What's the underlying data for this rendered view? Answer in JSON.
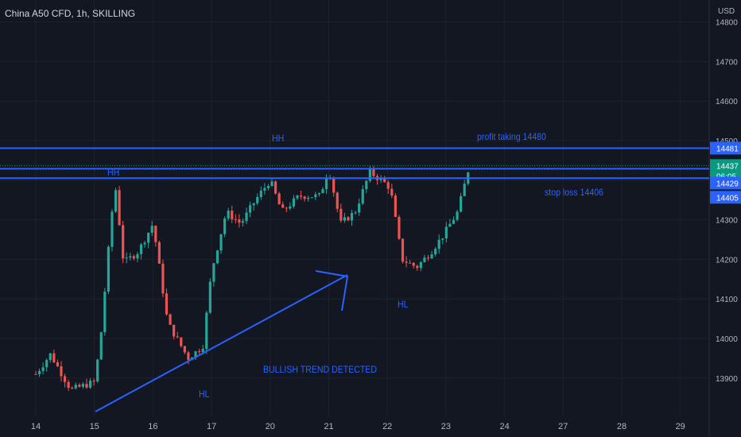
{
  "header": {
    "title": "China A50 CFD, 1h, SKILLING",
    "currency": "USD"
  },
  "annotations": {
    "hh_top": "HH",
    "hh_left": "HH",
    "hl_left": "HL",
    "hl_right": "HL",
    "profit_taking": "profit taking 14480",
    "stop_loss": "stop loss 14406",
    "bullish": "BULLISH TREND DETECTED"
  },
  "price_badges": {
    "profit_line": "14481",
    "current_price": "14437",
    "countdown": "06:05",
    "line_upper": "14429",
    "stop_line": "14405"
  },
  "colors": {
    "background": "#131722",
    "up": "#26a69a",
    "down": "#ef5350",
    "drawing": "#2962ff",
    "grid": "#1e222d",
    "axis_text": "#b2b5be",
    "price_badge": "#089981"
  },
  "chart_data": {
    "type": "candlestick",
    "title": "China A50 CFD, 1h, SKILLING",
    "currency": "USD",
    "x_ticks": [
      {
        "label": "14",
        "day": 14
      },
      {
        "label": "15",
        "day": 15
      },
      {
        "label": "16",
        "day": 16
      },
      {
        "label": "17",
        "day": 17
      },
      {
        "label": "20",
        "day": 18
      },
      {
        "label": "21",
        "day": 19
      },
      {
        "label": "22",
        "day": 20
      },
      {
        "label": "23",
        "day": 21
      },
      {
        "label": "24",
        "day": 22
      },
      {
        "label": "27",
        "day": 23
      },
      {
        "label": "28",
        "day": 24
      },
      {
        "label": "29",
        "day": 25
      }
    ],
    "y_ticks": [
      13900,
      14000,
      14100,
      14200,
      14300,
      14400,
      14500,
      14600,
      14700,
      14800
    ],
    "ylim": [
      13845,
      14835
    ],
    "horizontal_lines": [
      {
        "label": "profit taking 14480",
        "price": 14481
      },
      {
        "label": "",
        "price": 14429
      },
      {
        "label": "stop loss 14406",
        "price": 14405
      }
    ],
    "current_price": 14437,
    "keypoints": [
      {
        "day": 14.0,
        "price": 13910
      },
      {
        "day": 14.25,
        "price": 13960
      },
      {
        "day": 14.6,
        "price": 13870
      },
      {
        "day": 15.0,
        "price": 13890
      },
      {
        "day": 15.1,
        "price": 13990
      },
      {
        "day": 15.25,
        "price": 14240
      },
      {
        "day": 15.35,
        "price": 14395
      },
      {
        "day": 15.5,
        "price": 14190
      },
      {
        "day": 15.75,
        "price": 14220
      },
      {
        "day": 16.0,
        "price": 14290
      },
      {
        "day": 16.25,
        "price": 14040
      },
      {
        "day": 16.6,
        "price": 13950
      },
      {
        "day": 16.85,
        "price": 13980
      },
      {
        "day": 17.0,
        "price": 14170
      },
      {
        "day": 17.25,
        "price": 14320
      },
      {
        "day": 17.5,
        "price": 14290
      },
      {
        "day": 17.75,
        "price": 14350
      },
      {
        "day": 18.0,
        "price": 14400
      },
      {
        "day": 18.2,
        "price": 14320
      },
      {
        "day": 18.5,
        "price": 14360
      },
      {
        "day": 18.85,
        "price": 14360
      },
      {
        "day": 19.0,
        "price": 14430
      },
      {
        "day": 19.2,
        "price": 14290
      },
      {
        "day": 19.45,
        "price": 14320
      },
      {
        "day": 19.7,
        "price": 14420
      },
      {
        "day": 19.9,
        "price": 14400
      },
      {
        "day": 20.05,
        "price": 14380
      },
      {
        "day": 20.25,
        "price": 14200
      },
      {
        "day": 20.5,
        "price": 14180
      },
      {
        "day": 20.75,
        "price": 14220
      },
      {
        "day": 20.95,
        "price": 14260
      },
      {
        "day": 21.2,
        "price": 14320
      },
      {
        "day": 21.4,
        "price": 14437
      }
    ]
  }
}
